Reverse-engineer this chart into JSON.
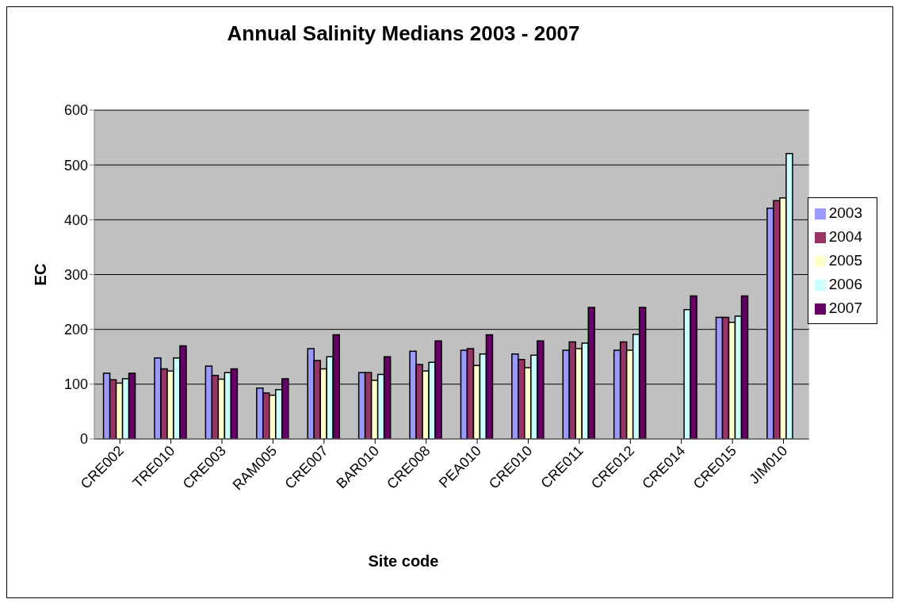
{
  "chart_data": {
    "type": "bar",
    "title": "Annual Salinity Medians 2003 - 2007",
    "xlabel": "Site code",
    "ylabel": "EC",
    "categories": [
      "CRE002",
      "TRE010",
      "CRE003",
      "RAM005",
      "CRE007",
      "BAR010",
      "CRE008",
      "PEA010",
      "CRE010",
      "CRE011",
      "CRE012",
      "CRE014",
      "CRE015",
      "JIM010"
    ],
    "series": [
      {
        "name": "2003",
        "color": "#9999ff",
        "values": [
          120,
          148,
          133,
          93,
          165,
          121,
          160,
          162,
          155,
          162,
          162,
          null,
          222,
          421
        ]
      },
      {
        "name": "2004",
        "color": "#993366",
        "values": [
          108,
          128,
          116,
          84,
          143,
          121,
          136,
          165,
          145,
          177,
          177,
          null,
          222,
          435
        ]
      },
      {
        "name": "2005",
        "color": "#ffffcc",
        "values": [
          102,
          124,
          109,
          80,
          128,
          107,
          124,
          134,
          130,
          165,
          162,
          null,
          213,
          440
        ]
      },
      {
        "name": "2006",
        "color": "#ccffff",
        "values": [
          110,
          148,
          121,
          90,
          150,
          118,
          140,
          155,
          153,
          175,
          191,
          236,
          224,
          521
        ]
      },
      {
        "name": "2007",
        "color": "#660066",
        "values": [
          120,
          170,
          128,
          110,
          190,
          150,
          179,
          190,
          179,
          240,
          240,
          261,
          261,
          null
        ]
      }
    ],
    "ylim": [
      0,
      600
    ],
    "yticks": [
      0,
      100,
      200,
      300,
      400,
      500,
      600
    ],
    "grid": "y",
    "legend": "right"
  }
}
